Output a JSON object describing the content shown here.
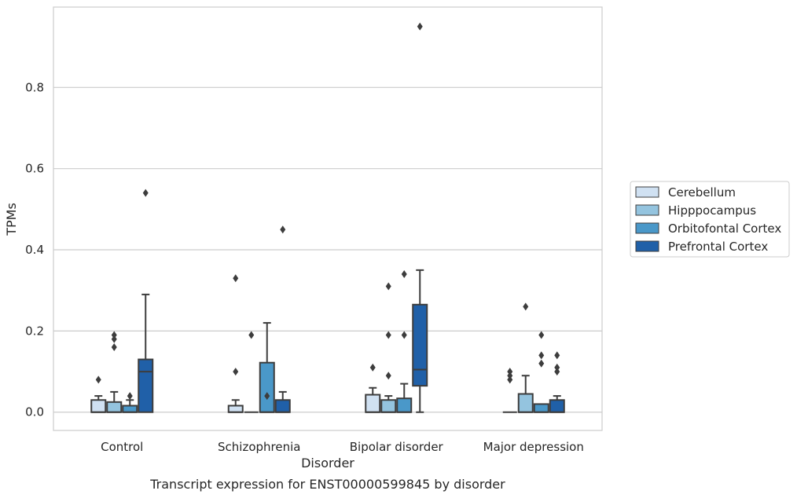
{
  "chart_data": {
    "type": "box",
    "title": "",
    "caption": "Transcript expression for ENST00000599845 by disorder",
    "xlabel": "Disorder",
    "ylabel": "TPMs",
    "ylim": [
      -0.045,
      0.998
    ],
    "yticks": [
      0.0,
      0.2,
      0.4,
      0.6,
      0.8
    ],
    "ytick_labels": [
      "0.0",
      "0.2",
      "0.4",
      "0.6",
      "0.8"
    ],
    "grid": "horizontal",
    "legend_position": "right",
    "categories": [
      "Control",
      "Schizophrenia",
      "Bipolar disorder",
      "Major depression"
    ],
    "series": [
      {
        "name": "Cerebellum",
        "color": "#d0e1f2",
        "boxes": [
          {
            "q1": 0.0,
            "median": 0.0,
            "q3": 0.03,
            "whisker_low": 0.0,
            "whisker_high": 0.04,
            "outliers": [
              0.08
            ]
          },
          {
            "q1": 0.0,
            "median": 0.0,
            "q3": 0.016,
            "whisker_low": 0.0,
            "whisker_high": 0.03,
            "outliers": [
              0.1,
              0.33
            ]
          },
          {
            "q1": 0.0,
            "median": 0.0,
            "q3": 0.043,
            "whisker_low": 0.0,
            "whisker_high": 0.06,
            "outliers": [
              0.11
            ]
          },
          {
            "q1": 0.0,
            "median": 0.0,
            "q3": 0.0,
            "whisker_low": 0.0,
            "whisker_high": 0.0,
            "outliers": [
              0.08,
              0.09,
              0.1
            ]
          }
        ]
      },
      {
        "name": "Hipppocampus",
        "color": "#94c4df",
        "boxes": [
          {
            "q1": 0.0,
            "median": 0.0,
            "q3": 0.025,
            "whisker_low": 0.0,
            "whisker_high": 0.05,
            "outliers": [
              0.16,
              0.18,
              0.19
            ]
          },
          {
            "q1": 0.0,
            "median": 0.0,
            "q3": 0.0,
            "whisker_low": 0.0,
            "whisker_high": 0.0,
            "outliers": [
              0.19
            ]
          },
          {
            "q1": 0.0,
            "median": 0.0,
            "q3": 0.03,
            "whisker_low": 0.0,
            "whisker_high": 0.04,
            "outliers": [
              0.09,
              0.19,
              0.31
            ]
          },
          {
            "q1": 0.0,
            "median": 0.0,
            "q3": 0.045,
            "whisker_low": 0.0,
            "whisker_high": 0.09,
            "outliers": [
              0.26
            ]
          }
        ]
      },
      {
        "name": "Orbitofontal Cortex",
        "color": "#4a98c9",
        "boxes": [
          {
            "q1": 0.0,
            "median": 0.0,
            "q3": 0.016,
            "whisker_low": 0.0,
            "whisker_high": 0.03,
            "outliers": [
              0.04
            ]
          },
          {
            "q1": 0.0,
            "median": 0.0,
            "q3": 0.122,
            "whisker_low": 0.0,
            "whisker_high": 0.22,
            "outliers": [
              0.04
            ]
          },
          {
            "q1": 0.0,
            "median": 0.0,
            "q3": 0.034,
            "whisker_low": 0.0,
            "whisker_high": 0.07,
            "outliers": [
              0.19,
              0.34
            ]
          },
          {
            "q1": 0.0,
            "median": 0.0,
            "q3": 0.02,
            "whisker_low": 0.0,
            "whisker_high": 0.02,
            "outliers": [
              0.12,
              0.14,
              0.19
            ]
          }
        ]
      },
      {
        "name": "Prefrontal Cortex",
        "color": "#2060a8",
        "boxes": [
          {
            "q1": 0.0,
            "median": 0.1,
            "q3": 0.13,
            "whisker_low": 0.0,
            "whisker_high": 0.29,
            "outliers": [
              0.54
            ]
          },
          {
            "q1": 0.0,
            "median": 0.0,
            "q3": 0.03,
            "whisker_low": 0.0,
            "whisker_high": 0.05,
            "outliers": [
              0.45
            ]
          },
          {
            "q1": 0.065,
            "median": 0.105,
            "q3": 0.265,
            "whisker_low": 0.0,
            "whisker_high": 0.35,
            "outliers": [
              0.95
            ]
          },
          {
            "q1": 0.0,
            "median": 0.0,
            "q3": 0.03,
            "whisker_low": 0.0,
            "whisker_high": 0.04,
            "outliers": [
              0.1,
              0.11,
              0.14
            ]
          }
        ]
      }
    ]
  }
}
